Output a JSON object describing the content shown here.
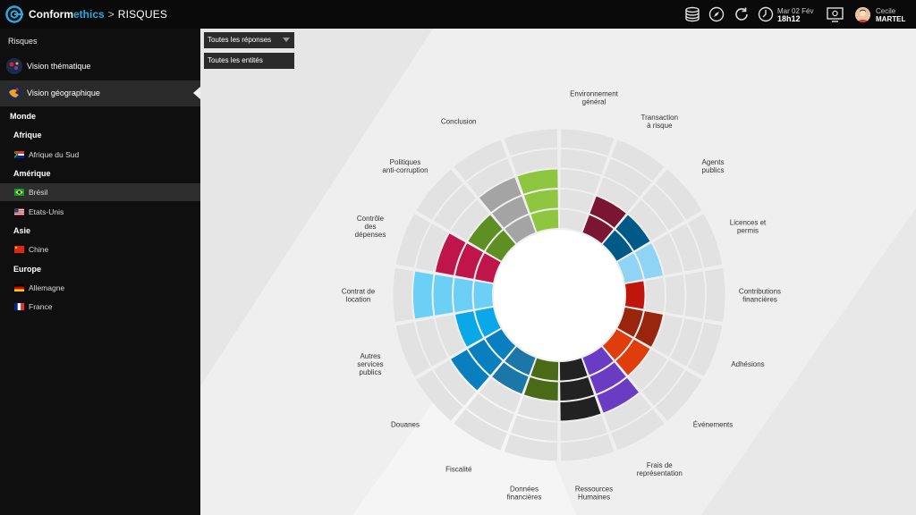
{
  "app": {
    "brand_conform": "Conform",
    "brand_ethics": "ethics",
    "separator": ">",
    "section": "RISQUES"
  },
  "header": {
    "date": "Mar 02 Fév",
    "time": "18h12",
    "user_first": "Cecile",
    "user_last": "MARTEL",
    "icons": [
      "database-icon",
      "compass-icon",
      "refresh-icon",
      "clock-icon",
      "monitor-settings-icon"
    ]
  },
  "sidebar": {
    "title": "Risques",
    "views": [
      {
        "label": "Vision thématique",
        "active": false
      },
      {
        "label": "Vision géographique",
        "active": true
      }
    ],
    "region": "Monde",
    "groups": [
      {
        "label": "Afrique",
        "countries": [
          {
            "label": "Afrique du Sud",
            "flag": "za"
          }
        ]
      },
      {
        "label": "Amérique",
        "countries": [
          {
            "label": "Brésil",
            "flag": "br",
            "active": true
          },
          {
            "label": "Etats-Unis",
            "flag": "us"
          }
        ]
      },
      {
        "label": "Asie",
        "countries": [
          {
            "label": "Chine",
            "flag": "cn"
          }
        ]
      },
      {
        "label": "Europe",
        "countries": [
          {
            "label": "Allemagne",
            "flag": "de"
          },
          {
            "label": "France",
            "flag": "fr"
          }
        ]
      }
    ]
  },
  "filters": {
    "responses": "Toutes les réponses",
    "entities": "Toutes les entités"
  },
  "chart_data": {
    "type": "radial-bar",
    "rings": 5,
    "categories": [
      {
        "label": [
          "Environnement",
          "général"
        ],
        "value": 0,
        "color": "#ffffff"
      },
      {
        "label": [
          "Transaction",
          "à risque"
        ],
        "value": 2,
        "color": "#7a1533"
      },
      {
        "label": [
          "Agents",
          "publics"
        ],
        "value": 2,
        "color": "#005a87"
      },
      {
        "label": [
          "Licences et",
          "permis"
        ],
        "value": 2,
        "color": "#8fd3f5"
      },
      {
        "label": [
          "Contributions",
          "financières"
        ],
        "value": 1,
        "color": "#c0150c"
      },
      {
        "label": [
          "Adhésions"
        ],
        "value": 2,
        "color": "#99250c"
      },
      {
        "label": [
          "Événements"
        ],
        "value": 2,
        "color": "#e03d0c"
      },
      {
        "label": [
          "Frais de",
          "représentation"
        ],
        "value": 3,
        "color": "#6a3cc4"
      },
      {
        "label": [
          "Ressources",
          "Humaines"
        ],
        "value": 3,
        "color": "#222222"
      },
      {
        "label": [
          "Données",
          "financières"
        ],
        "value": 2,
        "color": "#4a6a18"
      },
      {
        "label": [
          "Fiscalité"
        ],
        "value": 2,
        "color": "#1a77a8"
      },
      {
        "label": [
          "Douanes"
        ],
        "value": 3,
        "color": "#0a7fbf"
      },
      {
        "label": [
          "Autres",
          "services",
          "publics"
        ],
        "value": 2,
        "color": "#0aa8e8"
      },
      {
        "label": [
          "Contrat de",
          "location"
        ],
        "value": 4,
        "color": "#6ccff5"
      },
      {
        "label": [
          "Contrôle",
          "des",
          "dépenses"
        ],
        "value": 3,
        "color": "#c0154b"
      },
      {
        "label": [
          "Politiques",
          "anti-corruption"
        ],
        "value": 2,
        "color": "#5d8f23"
      },
      {
        "label": [
          "Conclusion"
        ],
        "value": 3,
        "color": "#a4a4a4"
      },
      {
        "label": [],
        "value": 3,
        "color": "#8fc63f"
      }
    ]
  }
}
